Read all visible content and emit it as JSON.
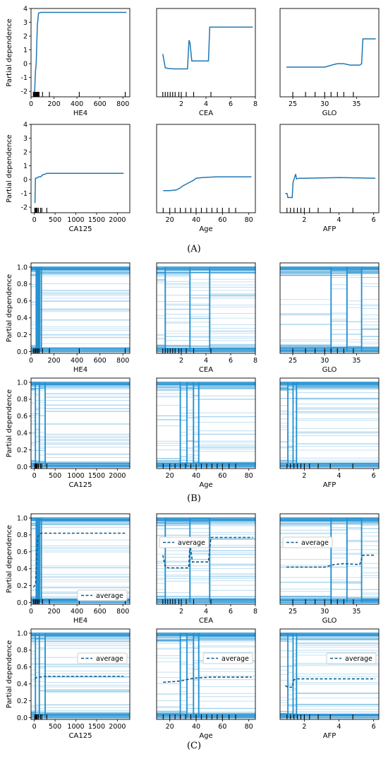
{
  "figure": {
    "panel_labels": [
      "(A)",
      "(B)",
      "(C)"
    ],
    "ylabel": "Partial dependence",
    "legend_label": "average",
    "line_color": "#1f77b4",
    "ice_color": "#1f8fd0"
  },
  "chart_data": [
    {
      "id": "A1",
      "panel": "A",
      "type": "line",
      "xlabel": "HE4",
      "xlim": [
        0,
        860
      ],
      "ylim": [
        -2.4,
        4
      ],
      "xticks": [
        0,
        200,
        400,
        600,
        800
      ],
      "yticks": [
        -2,
        -1,
        0,
        1,
        2,
        3,
        4
      ],
      "rug": [
        20,
        25,
        30,
        35,
        40,
        45,
        50,
        55,
        60,
        65,
        70,
        100,
        160,
        420,
        820
      ],
      "x": [
        20,
        30,
        38,
        45,
        55,
        58,
        65,
        75,
        90,
        110,
        200,
        400,
        830
      ],
      "y": [
        -2.2,
        -2.3,
        -0.6,
        0.0,
        2.9,
        3.0,
        3.65,
        3.7,
        3.72,
        3.72,
        3.72,
        3.72,
        3.72
      ]
    },
    {
      "id": "A2",
      "panel": "A",
      "type": "line",
      "xlabel": "CEA",
      "xlim": [
        0,
        8
      ],
      "ylim": [
        -2.4,
        4
      ],
      "xticks": [
        2,
        4,
        6,
        8
      ],
      "yticks": [],
      "rug": [
        0.5,
        0.7,
        0.9,
        1.1,
        1.3,
        1.5,
        1.8,
        2.0,
        2.4,
        3.0,
        4.4
      ],
      "x": [
        0.5,
        0.7,
        1.0,
        1.5,
        2.5,
        2.62,
        2.7,
        2.85,
        4.2,
        4.3,
        4.45,
        7.8
      ],
      "y": [
        0.7,
        -0.3,
        -0.35,
        -0.38,
        -0.38,
        1.7,
        1.5,
        0.2,
        0.2,
        2.65,
        2.65,
        2.65
      ]
    },
    {
      "id": "A3",
      "panel": "A",
      "type": "line",
      "xlabel": "GLO",
      "xlim": [
        23,
        38.5
      ],
      "ylim": [
        -2.4,
        4
      ],
      "xticks": [
        25,
        30,
        35
      ],
      "yticks": [],
      "rug": [
        25,
        27,
        28.5,
        30,
        31,
        32,
        33,
        34.5
      ],
      "x": [
        24,
        30,
        31.5,
        32,
        33,
        34,
        35.5,
        35.8,
        36,
        38
      ],
      "y": [
        -0.25,
        -0.25,
        -0.05,
        0.0,
        0.0,
        -0.1,
        -0.1,
        0.0,
        1.8,
        1.8
      ]
    },
    {
      "id": "A4",
      "panel": "A",
      "type": "line",
      "xlabel": "CA125",
      "xlim": [
        -80,
        2300
      ],
      "ylim": [
        -2.4,
        4
      ],
      "xticks": [
        0,
        500,
        1000,
        1500,
        2000
      ],
      "yticks": [
        -2,
        -1,
        0,
        1,
        2,
        3,
        4
      ],
      "rug": [
        10,
        15,
        20,
        25,
        30,
        35,
        40,
        45,
        50,
        55,
        60,
        70,
        100,
        150,
        180,
        300
      ],
      "x": [
        15,
        25,
        50,
        100,
        150,
        200,
        260,
        300,
        500,
        1000,
        2150
      ],
      "y": [
        -1.7,
        0.1,
        0.1,
        0.2,
        0.2,
        0.35,
        0.4,
        0.45,
        0.45,
        0.45,
        0.45
      ]
    },
    {
      "id": "A5",
      "panel": "A",
      "type": "line",
      "xlabel": "Age",
      "xlim": [
        10,
        85
      ],
      "ylim": [
        -2.4,
        4
      ],
      "xticks": [
        20,
        40,
        60,
        80
      ],
      "yticks": [],
      "rug": [
        15,
        20,
        24,
        28,
        32,
        36,
        40,
        44,
        48,
        52,
        56,
        60,
        65,
        70
      ],
      "x": [
        15,
        20,
        25,
        28,
        30,
        32,
        35,
        38,
        40,
        45,
        55,
        65,
        82
      ],
      "y": [
        -0.8,
        -0.8,
        -0.75,
        -0.6,
        -0.45,
        -0.35,
        -0.2,
        -0.05,
        0.1,
        0.15,
        0.2,
        0.2,
        0.2
      ]
    },
    {
      "id": "A6",
      "panel": "A",
      "type": "line",
      "xlabel": "AFP",
      "xlim": [
        0.6,
        6.3
      ],
      "ylim": [
        -2.4,
        4
      ],
      "xticks": [
        2,
        4,
        6
      ],
      "yticks": [],
      "rug": [
        1.0,
        1.2,
        1.4,
        1.6,
        1.8,
        2.0,
        2.3,
        2.8,
        3.5,
        4.8
      ],
      "x": [
        0.9,
        1.0,
        1.05,
        1.3,
        1.35,
        1.5,
        1.55,
        1.7,
        2.0,
        4.0,
        6.1
      ],
      "y": [
        -1.0,
        -1.0,
        -1.3,
        -1.3,
        -0.2,
        0.4,
        0.05,
        0.1,
        0.1,
        0.15,
        0.1
      ]
    },
    {
      "id": "B1",
      "panel": "B",
      "type": "ice",
      "xlabel": "HE4",
      "xlim": [
        0,
        860
      ],
      "ylim": [
        -0.02,
        1.05
      ],
      "xticks": [
        0,
        200,
        400,
        600,
        800
      ],
      "yticks": [
        0.0,
        0.2,
        0.4,
        0.6,
        0.8,
        1.0
      ],
      "rug": [
        20,
        30,
        40,
        50,
        60,
        70,
        100,
        160,
        420,
        820
      ],
      "steps": [
        45,
        55,
        65,
        75,
        90
      ],
      "curves": 60
    },
    {
      "id": "B2",
      "panel": "B",
      "type": "ice",
      "xlabel": "CEA",
      "xlim": [
        0,
        8
      ],
      "ylim": [
        -0.02,
        1.05
      ],
      "xticks": [
        2,
        4,
        6,
        8
      ],
      "yticks": [],
      "rug": [
        0.5,
        0.7,
        0.9,
        1.1,
        1.3,
        1.5,
        1.8,
        2.0,
        2.4,
        3.0,
        4.4
      ],
      "steps": [
        0.7,
        2.7,
        4.3
      ],
      "curves": 60
    },
    {
      "id": "B3",
      "panel": "B",
      "type": "ice",
      "xlabel": "GLO",
      "xlim": [
        23,
        38.5
      ],
      "ylim": [
        -0.02,
        1.05
      ],
      "xticks": [
        25,
        30,
        35
      ],
      "yticks": [],
      "rug": [
        25,
        27,
        28.5,
        30,
        31,
        32,
        33,
        34.5
      ],
      "steps": [
        31,
        33.5,
        35.8
      ],
      "curves": 60
    },
    {
      "id": "B4",
      "panel": "B",
      "type": "ice",
      "xlabel": "CA125",
      "xlim": [
        -80,
        2300
      ],
      "ylim": [
        -0.02,
        1.05
      ],
      "xticks": [
        0,
        500,
        1000,
        1500,
        2000
      ],
      "yticks": [
        0.0,
        0.2,
        0.4,
        0.6,
        0.8,
        1.0
      ],
      "rug": [
        10,
        20,
        30,
        40,
        50,
        60,
        70,
        100,
        150,
        180,
        300
      ],
      "steps": [
        25,
        120,
        260
      ],
      "curves": 60
    },
    {
      "id": "B5",
      "panel": "B",
      "type": "ice",
      "xlabel": "Age",
      "xlim": [
        10,
        85
      ],
      "ylim": [
        -0.02,
        1.05
      ],
      "xticks": [
        20,
        40,
        60,
        80
      ],
      "yticks": [],
      "rug": [
        15,
        20,
        24,
        28,
        32,
        36,
        40,
        44,
        48,
        52,
        56,
        60,
        65,
        70
      ],
      "steps": [
        28,
        33,
        38,
        42
      ],
      "curves": 60
    },
    {
      "id": "B6",
      "panel": "B",
      "type": "ice",
      "xlabel": "AFP",
      "xlim": [
        0.6,
        6.3
      ],
      "ylim": [
        -0.02,
        1.05
      ],
      "xticks": [
        2,
        4,
        6
      ],
      "yticks": [],
      "rug": [
        1.0,
        1.2,
        1.4,
        1.6,
        1.8,
        2.0,
        2.3,
        2.8,
        3.5,
        4.8
      ],
      "steps": [
        1.05,
        1.35,
        1.55
      ],
      "curves": 60
    },
    {
      "id": "C1",
      "panel": "C",
      "type": "ice",
      "xlabel": "HE4",
      "xlim": [
        0,
        860
      ],
      "ylim": [
        -0.02,
        1.05
      ],
      "xticks": [
        0,
        200,
        400,
        600,
        800
      ],
      "yticks": [
        0.0,
        0.2,
        0.4,
        0.6,
        0.8,
        1.0
      ],
      "rug": [
        20,
        30,
        40,
        50,
        60,
        70,
        100,
        160,
        420,
        820
      ],
      "steps": [
        45,
        55,
        65,
        75,
        90
      ],
      "curves": 60,
      "legend": "lower right",
      "avg_x": [
        20,
        40,
        50,
        60,
        70,
        90,
        200,
        830
      ],
      "avg_y": [
        0.18,
        0.22,
        0.6,
        0.78,
        0.81,
        0.82,
        0.82,
        0.82
      ]
    },
    {
      "id": "C2",
      "panel": "C",
      "type": "ice",
      "xlabel": "CEA",
      "xlim": [
        0,
        8
      ],
      "ylim": [
        -0.02,
        1.05
      ],
      "xticks": [
        2,
        4,
        6,
        8
      ],
      "yticks": [],
      "rug": [
        0.5,
        0.7,
        0.9,
        1.1,
        1.3,
        1.5,
        1.8,
        2.0,
        2.4,
        3.0,
        4.4
      ],
      "steps": [
        0.7,
        2.7,
        4.3
      ],
      "curves": 60,
      "legend": "upper left",
      "avg_x": [
        0.5,
        0.7,
        1.0,
        2.6,
        2.7,
        2.9,
        4.2,
        4.4,
        7.8
      ],
      "avg_y": [
        0.56,
        0.42,
        0.41,
        0.41,
        0.7,
        0.48,
        0.48,
        0.77,
        0.77
      ]
    },
    {
      "id": "C3",
      "panel": "C",
      "type": "ice",
      "xlabel": "GLO",
      "xlim": [
        23,
        38.5
      ],
      "ylim": [
        -0.02,
        1.05
      ],
      "xticks": [
        25,
        30,
        35
      ],
      "yticks": [],
      "rug": [
        25,
        27,
        28.5,
        30,
        31,
        32,
        33,
        34.5
      ],
      "steps": [
        31,
        33.5,
        35.8
      ],
      "curves": 60,
      "legend": "upper left",
      "avg_x": [
        24,
        30,
        31.5,
        33,
        35.5,
        36,
        38
      ],
      "avg_y": [
        0.42,
        0.42,
        0.45,
        0.46,
        0.45,
        0.56,
        0.56
      ]
    },
    {
      "id": "C4",
      "panel": "C",
      "type": "ice",
      "xlabel": "CA125",
      "xlim": [
        -80,
        2300
      ],
      "ylim": [
        -0.02,
        1.05
      ],
      "xticks": [
        0,
        500,
        1000,
        1500,
        2000
      ],
      "yticks": [
        0.0,
        0.2,
        0.4,
        0.6,
        0.8,
        1.0
      ],
      "rug": [
        10,
        20,
        30,
        40,
        50,
        60,
        70,
        100,
        150,
        180,
        300
      ],
      "steps": [
        25,
        120,
        260
      ],
      "curves": 60,
      "legend": "upper right",
      "avg_x": [
        15,
        30,
        100,
        260,
        500,
        2150
      ],
      "avg_y": [
        0.46,
        0.47,
        0.48,
        0.49,
        0.49,
        0.49
      ]
    },
    {
      "id": "C5",
      "panel": "C",
      "type": "ice",
      "xlabel": "Age",
      "xlim": [
        10,
        85
      ],
      "ylim": [
        -0.02,
        1.05
      ],
      "xticks": [
        20,
        40,
        60,
        80
      ],
      "yticks": [],
      "rug": [
        15,
        20,
        24,
        28,
        32,
        36,
        40,
        44,
        48,
        52,
        56,
        60,
        65,
        70
      ],
      "steps": [
        28,
        33,
        38,
        42
      ],
      "curves": 60,
      "legend": "upper right",
      "avg_x": [
        15,
        25,
        30,
        35,
        40,
        50,
        82
      ],
      "avg_y": [
        0.42,
        0.43,
        0.44,
        0.46,
        0.47,
        0.48,
        0.48
      ]
    },
    {
      "id": "C6",
      "panel": "C",
      "type": "ice",
      "xlabel": "AFP",
      "xlim": [
        0.6,
        6.3
      ],
      "ylim": [
        -0.02,
        1.05
      ],
      "xticks": [
        2,
        4,
        6
      ],
      "yticks": [],
      "rug": [
        1.0,
        1.2,
        1.4,
        1.6,
        1.8,
        2.0,
        2.3,
        2.8,
        3.5,
        4.8
      ],
      "steps": [
        1.05,
        1.35,
        1.55
      ],
      "curves": 60,
      "legend": "upper right",
      "avg_x": [
        0.9,
        1.05,
        1.3,
        1.4,
        1.55,
        2.0,
        6.1
      ],
      "avg_y": [
        0.38,
        0.36,
        0.36,
        0.45,
        0.46,
        0.46,
        0.46
      ]
    }
  ]
}
